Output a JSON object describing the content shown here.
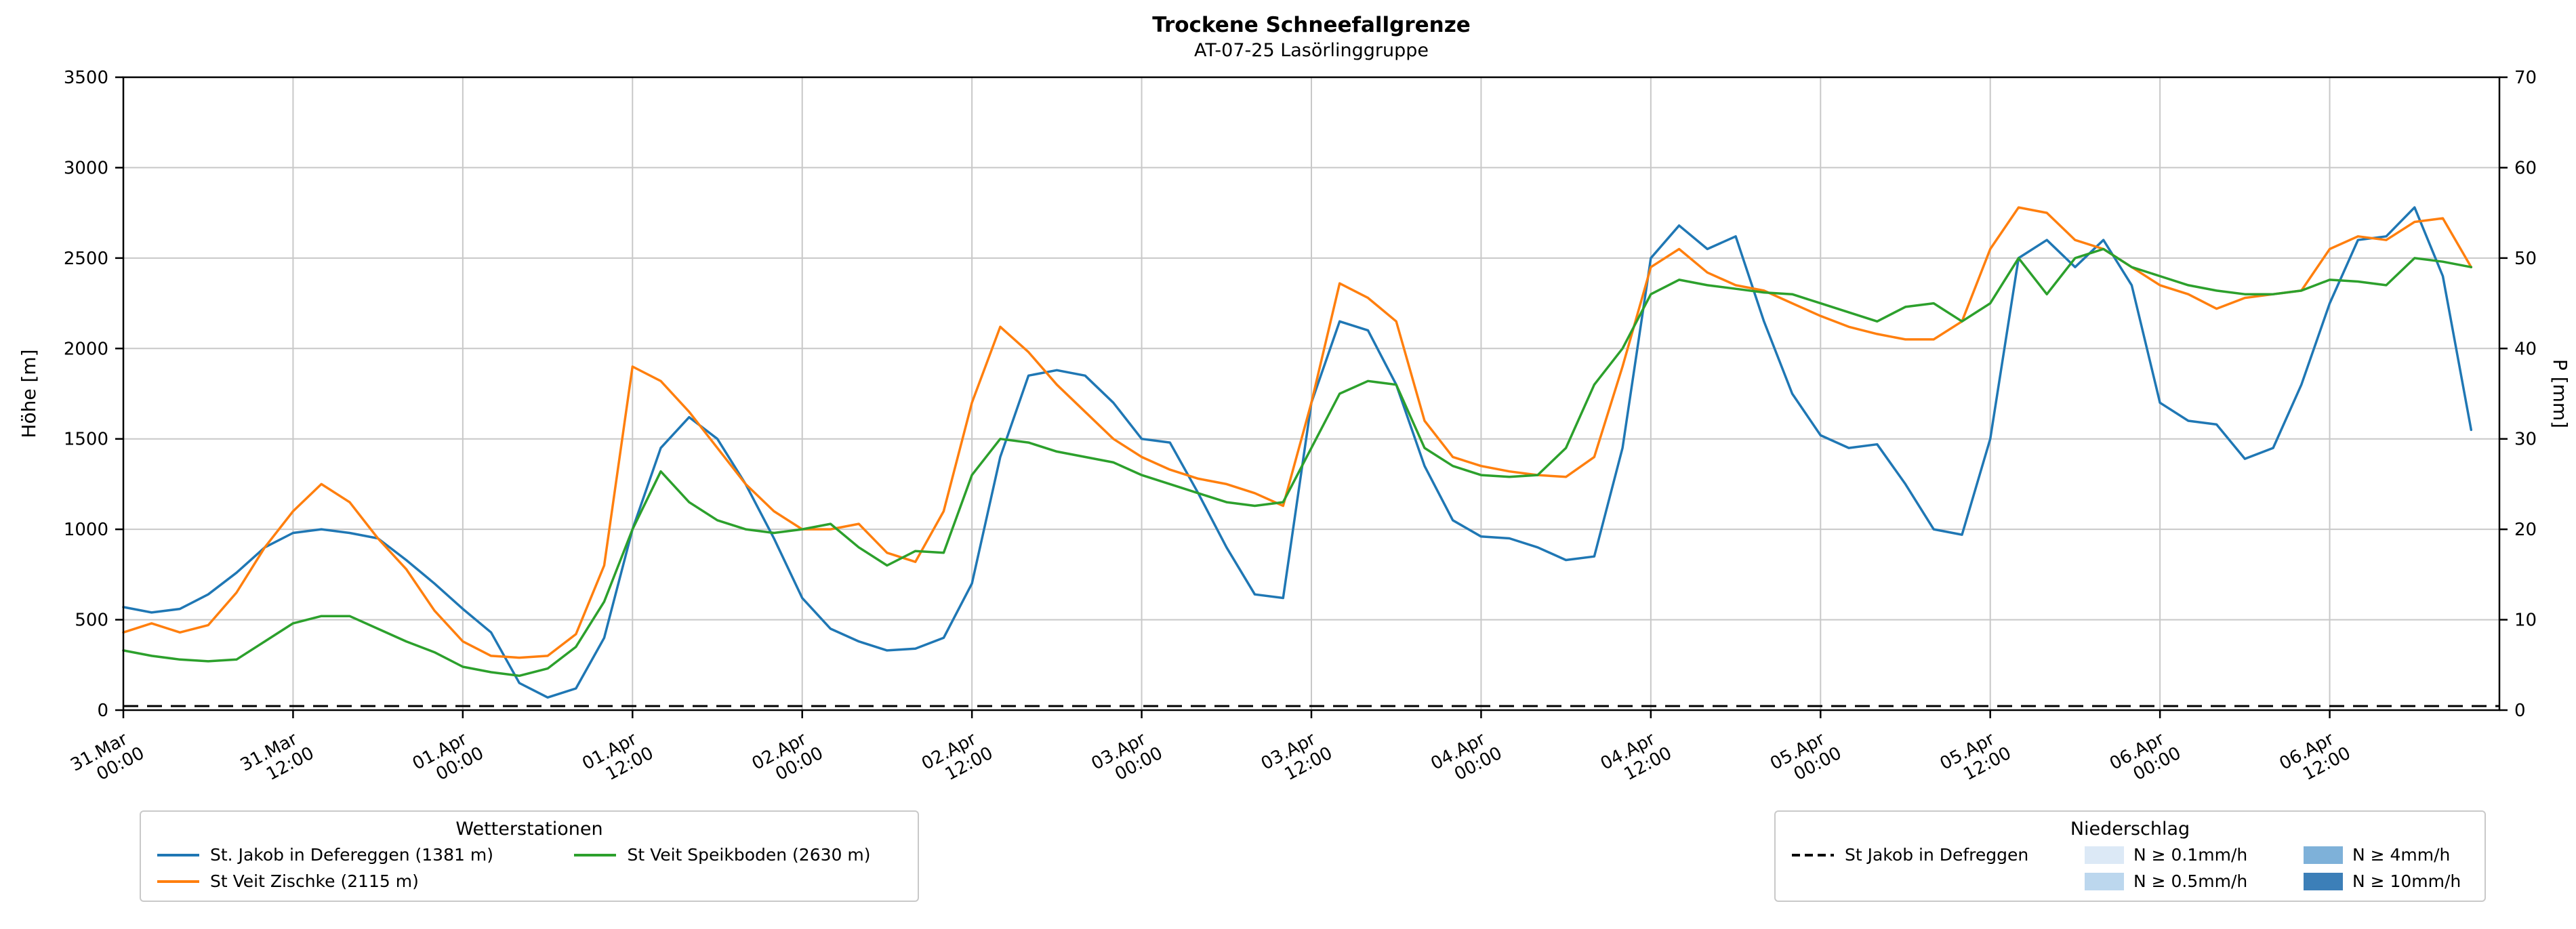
{
  "title": "Trockene Schneefallgrenze",
  "subtitle": "AT-07-25 Lasörlinggruppe",
  "chart_data": {
    "type": "line",
    "title": "Trockene Schneefallgrenze",
    "subtitle": "AT-07-25 Lasörlinggruppe",
    "ylabel_left": "Höhe [m]",
    "ylabel_right": "P [mm]",
    "ylim_left": [
      0,
      3500
    ],
    "ylim_right": [
      0,
      70
    ],
    "yticks_left": [
      0,
      500,
      1000,
      1500,
      2000,
      2500,
      3000,
      3500
    ],
    "yticks_right": [
      0,
      10,
      20,
      30,
      40,
      50,
      60,
      70
    ],
    "grid": true,
    "legend_position": "below plot, two boxes",
    "x_domain_hours": [
      0,
      168
    ],
    "x_step_hours": 2,
    "xtick_hours": [
      0,
      12,
      24,
      36,
      48,
      60,
      72,
      84,
      96,
      108,
      120,
      132,
      144,
      156
    ],
    "xtick_labels": [
      "31.Mar 00:00",
      "31.Mar 12:00",
      "01.Apr 00:00",
      "01.Apr 12:00",
      "02.Apr 00:00",
      "02.Apr 12:00",
      "03.Apr 00:00",
      "03.Apr 12:00",
      "04.Apr 00:00",
      "04.Apr 12:00",
      "05.Apr 00:00",
      "05.Apr 12:00",
      "06.Apr 00:00",
      "06.Apr 12:00"
    ],
    "series": [
      {
        "name": "St. Jakob in Defereggen (1381 m)",
        "color": "#1f77b4",
        "axis": "left",
        "unit": "m",
        "values": [
          570,
          540,
          560,
          640,
          760,
          900,
          980,
          1000,
          980,
          950,
          830,
          700,
          560,
          430,
          150,
          70,
          120,
          400,
          1000,
          1450,
          1620,
          1500,
          1250,
          950,
          620,
          450,
          380,
          330,
          340,
          400,
          700,
          1400,
          1850,
          1880,
          1850,
          1700,
          1500,
          1480,
          1200,
          900,
          640,
          620,
          1700,
          2150,
          2100,
          1800,
          1350,
          1050,
          960,
          950,
          900,
          830,
          850,
          1450,
          2500,
          2680,
          2550,
          2620,
          2150,
          1750,
          1520,
          1450,
          1470,
          1250,
          1000,
          970,
          1500,
          2500,
          2600,
          2450,
          2600,
          2350,
          1700,
          1600,
          1580,
          1390,
          1450,
          1800,
          2250,
          2600,
          2620,
          2780,
          2400,
          1550
        ]
      },
      {
        "name": "St Veit Zischke (2115 m)",
        "color": "#ff7f0e",
        "axis": "left",
        "unit": "m",
        "values": [
          430,
          480,
          430,
          470,
          650,
          900,
          1100,
          1250,
          1150,
          950,
          780,
          550,
          380,
          300,
          290,
          300,
          420,
          800,
          1900,
          1820,
          1650,
          1450,
          1250,
          1100,
          1000,
          1000,
          1030,
          870,
          820,
          1100,
          1700,
          2120,
          1980,
          1800,
          1650,
          1500,
          1400,
          1330,
          1280,
          1250,
          1200,
          1130,
          1700,
          2360,
          2280,
          2150,
          1600,
          1400,
          1350,
          1320,
          1300,
          1290,
          1400,
          1900,
          2450,
          2550,
          2420,
          2350,
          2320,
          2250,
          2180,
          2120,
          2080,
          2050,
          2050,
          2150,
          2550,
          2780,
          2750,
          2600,
          2550,
          2450,
          2350,
          2300,
          2220,
          2280,
          2300,
          2320,
          2550,
          2620,
          2600,
          2700,
          2720,
          2450
        ]
      },
      {
        "name": "St Veit Speikboden (2630 m)",
        "color": "#2ca02c",
        "axis": "left",
        "unit": "m",
        "values": [
          330,
          300,
          280,
          270,
          280,
          380,
          480,
          520,
          520,
          450,
          380,
          320,
          240,
          210,
          190,
          230,
          350,
          600,
          1000,
          1320,
          1150,
          1050,
          1000,
          980,
          1000,
          1030,
          900,
          800,
          880,
          870,
          1300,
          1500,
          1480,
          1430,
          1400,
          1370,
          1300,
          1250,
          1200,
          1150,
          1130,
          1150,
          1450,
          1750,
          1820,
          1800,
          1450,
          1350,
          1300,
          1290,
          1300,
          1450,
          1800,
          2000,
          2300,
          2380,
          2350,
          2330,
          2310,
          2300,
          2250,
          2200,
          2150,
          2230,
          2250,
          2150,
          2250,
          2500,
          2300,
          2500,
          2550,
          2450,
          2400,
          2350,
          2320,
          2300,
          2300,
          2320,
          2380,
          2370,
          2350,
          2500,
          2480,
          2450
        ]
      },
      {
        "name": "St Jakob in Defreggen",
        "color": "#000000",
        "style": "dashed",
        "axis": "right",
        "unit": "mm",
        "constant_value": 0,
        "note": "precipitation ≈ 0 mm/h for entire period; drawn as flat dashed line at 0"
      }
    ]
  },
  "axes": {
    "ylabel_left": "Höhe [m]",
    "ylabel_right": "P [mm]"
  },
  "legend_stations": {
    "title": "Wetterstationen",
    "items": [
      {
        "label": "St. Jakob in Defereggen (1381 m)",
        "type": "line",
        "color": "#1f77b4"
      },
      {
        "label": "St Veit Zischke (2115 m)",
        "type": "line",
        "color": "#ff7f0e"
      },
      {
        "label": "St Veit Speikboden (2630 m)",
        "type": "line",
        "color": "#2ca02c"
      }
    ]
  },
  "legend_precip": {
    "title": "Niederschlag",
    "items": [
      {
        "label": "St Jakob in Defreggen",
        "type": "dashed-line",
        "color": "#000000"
      },
      {
        "label": "N ≥ 0.1mm/h",
        "type": "patch",
        "color": "#dce9f6"
      },
      {
        "label": "N ≥ 0.5mm/h",
        "type": "patch",
        "color": "#bcd7ee"
      },
      {
        "label": "N ≥ 4mm/h",
        "type": "patch",
        "color": "#7eb1d9"
      },
      {
        "label": "N ≥ 10mm/h",
        "type": "patch",
        "color": "#3c7fb8"
      }
    ]
  },
  "colors": {
    "grid": "#c8c8c8",
    "spine": "#000000"
  }
}
